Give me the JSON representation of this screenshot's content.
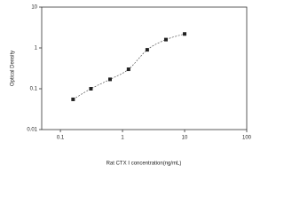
{
  "chart_data": {
    "type": "scatter",
    "xlabel": "Rat CTX Ⅰ concentration(ng/mL)",
    "ylabel": "Optical Density",
    "x": [
      0.16,
      0.31,
      0.63,
      1.25,
      2.5,
      5,
      10
    ],
    "values": [
      0.055,
      0.1,
      0.17,
      0.3,
      0.9,
      1.6,
      2.2
    ],
    "color": "#222222",
    "xlim": [
      0.05,
      100
    ],
    "xticks": [
      0.1,
      1,
      10,
      100
    ],
    "ylim": [
      0.01,
      10
    ],
    "yticks": [
      0.01,
      0.1,
      1,
      10
    ],
    "xlog": true,
    "ylog": true
  }
}
